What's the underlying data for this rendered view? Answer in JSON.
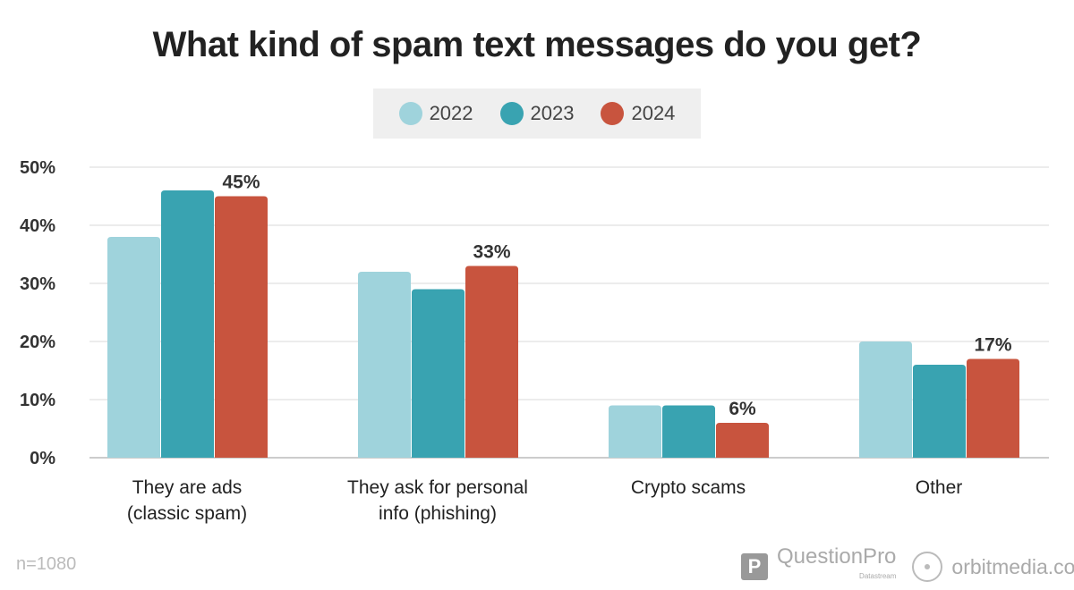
{
  "chart_data": {
    "type": "bar",
    "title": "What kind of spam text messages do you get?",
    "categories": [
      [
        "They are ads",
        "(classic spam)"
      ],
      [
        "They ask for personal",
        "info (phishing)"
      ],
      [
        "Crypto scams"
      ],
      [
        "Other"
      ]
    ],
    "series": [
      {
        "name": "2022",
        "color": "#9fd3dc",
        "values": [
          38,
          32,
          9,
          20
        ]
      },
      {
        "name": "2023",
        "color": "#39a3b1",
        "values": [
          46,
          29,
          9,
          16
        ]
      },
      {
        "name": "2024",
        "color": "#c8543e",
        "values": [
          45,
          33,
          6,
          17
        ]
      }
    ],
    "data_labels": {
      "series": "2024",
      "labels": [
        "45%",
        "33%",
        "6%",
        "17%"
      ]
    },
    "yticks": [
      "0%",
      "10%",
      "20%",
      "30%",
      "40%",
      "50%"
    ],
    "ylim": [
      0,
      50
    ],
    "grid": true,
    "legend_position": "top-center",
    "note": "n=1080"
  },
  "branding": {
    "questionpro": "QuestionPro",
    "questionpro_sub": "Datastream",
    "orbit": "orbitmedia.com"
  }
}
